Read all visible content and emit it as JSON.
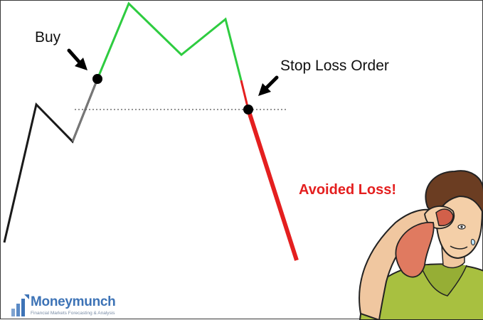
{
  "labels": {
    "buy": "Buy",
    "stop_loss": "Stop Loss Order",
    "avoided_loss": "Avoided Loss!"
  },
  "logo": {
    "name": "Moneymunch",
    "tagline": "Financial Markets Forecasting & Analysis"
  },
  "colors": {
    "pre_buy": "#1a1a1a",
    "profit": "#2ecc40",
    "loss": "#e41f1f",
    "marker": "#000000",
    "level_line": "#555555",
    "brand": "#3d73b6"
  },
  "illustration": {
    "icon": "sweating-man-wiping-forehead-icon"
  }
}
